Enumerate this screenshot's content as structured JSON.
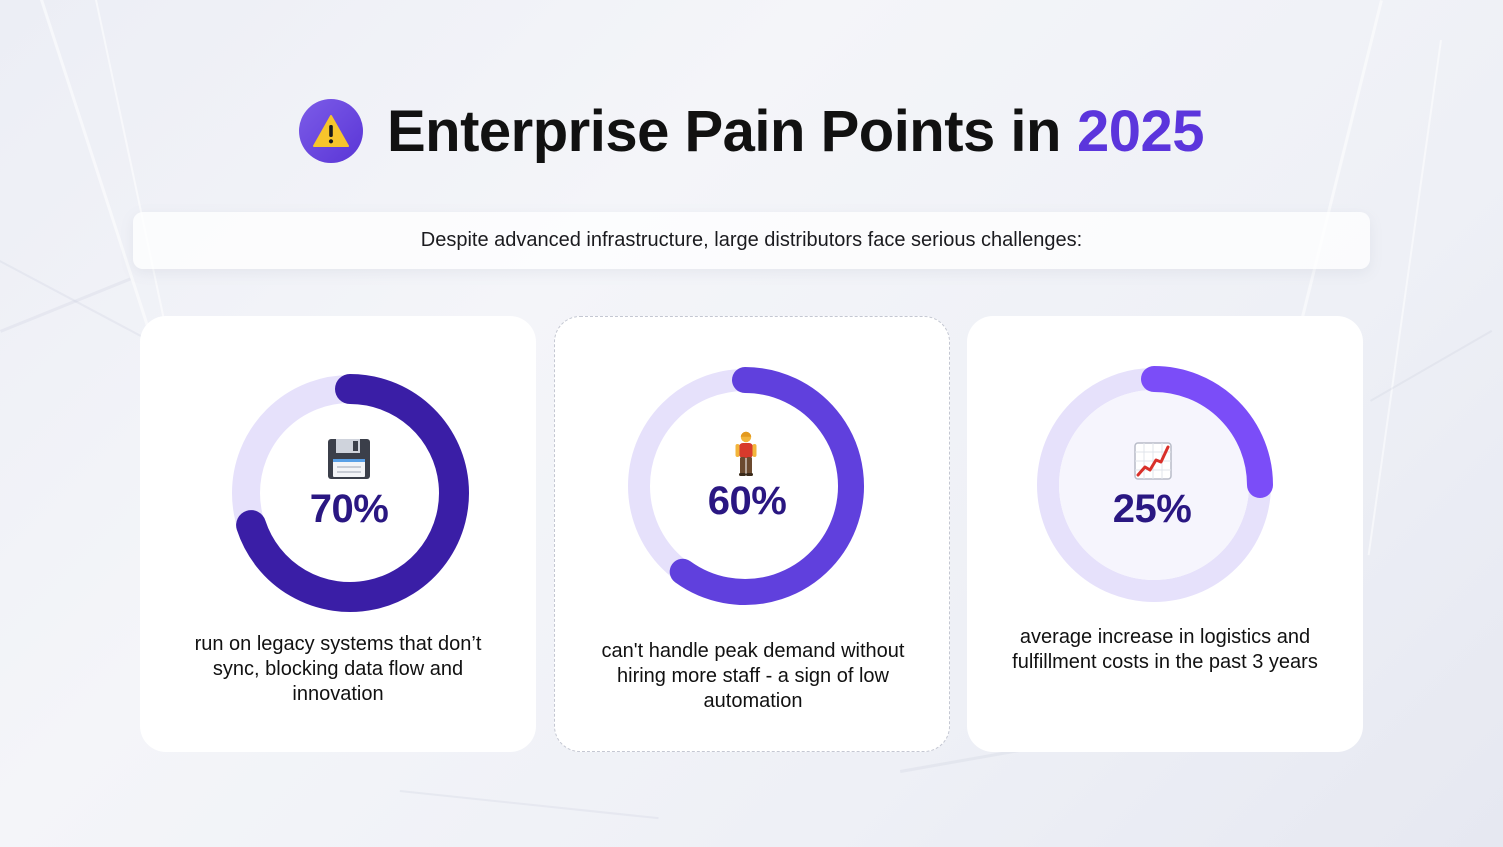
{
  "header": {
    "title": "Enterprise Pain Points in",
    "year": "2025",
    "badge_icon": "warning-icon"
  },
  "subtitle": "Despite advanced infrastructure, large distributors face serious challenges:",
  "colors": {
    "accent": "#5b35dc",
    "track": "#e6e1fb"
  },
  "cards": [
    {
      "percent_label": "70%",
      "percent_value": 0.7,
      "icon": "floppy-disk-icon",
      "description": "run on legacy systems that don’t sync, blocking data flow and innovation",
      "ring_color": "#3a1ea6",
      "text_color": "#2a1782"
    },
    {
      "percent_label": "60%",
      "percent_value": 0.6,
      "icon": "person-standing-icon",
      "description": "can't handle peak demand without hiring more staff - a sign of low automation",
      "ring_color": "#6040dd",
      "text_color": "#2a1782"
    },
    {
      "percent_label": "25%",
      "percent_value": 0.25,
      "icon": "chart-increasing-icon",
      "description": "average increase in logistics and fulfillment costs in the past 3 years",
      "ring_color": "#7b4df8",
      "text_color": "#2a1782"
    }
  ]
}
